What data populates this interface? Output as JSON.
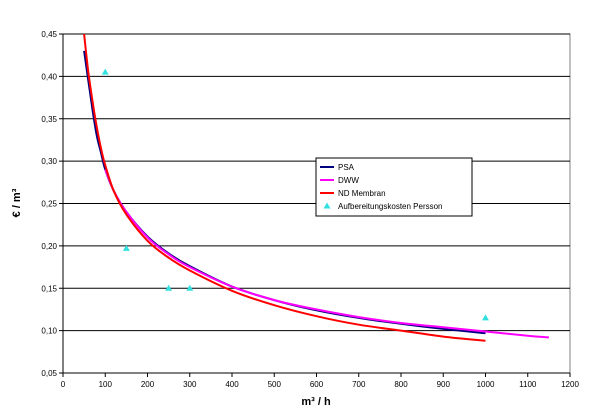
{
  "chart_data": {
    "type": "line",
    "title": "",
    "xlabel": "m³ / h",
    "ylabel": "€ / m³",
    "xlim": [
      0,
      1200
    ],
    "ylim": [
      0.05,
      0.45
    ],
    "xticks": [
      0,
      100,
      200,
      300,
      400,
      500,
      600,
      700,
      800,
      900,
      1000,
      1100,
      1200
    ],
    "xtick_labels": [
      "0",
      "100",
      "200",
      "300",
      "400",
      "500",
      "600",
      "700",
      "800",
      "900",
      "1000",
      "1100",
      "1200"
    ],
    "yticks": [
      0.05,
      0.1,
      0.15,
      0.2,
      0.25,
      0.3,
      0.35,
      0.4,
      0.45
    ],
    "ytick_labels": [
      "0,05",
      "0,10",
      "0,15",
      "0,20",
      "0,25",
      "0,30",
      "0,35",
      "0,40",
      "0,45"
    ],
    "grid": "horizontal",
    "legend_position": "right",
    "series": [
      {
        "name": "PSA",
        "kind": "line",
        "color": "#000080",
        "x": [
          50,
          60,
          70,
          80,
          90,
          100,
          120,
          150,
          200,
          250,
          300,
          400,
          500,
          600,
          700,
          800,
          900,
          1000
        ],
        "y": [
          0.43,
          0.395,
          0.36,
          0.33,
          0.31,
          0.29,
          0.265,
          0.24,
          0.211,
          0.191,
          0.176,
          0.152,
          0.136,
          0.124,
          0.115,
          0.108,
          0.102,
          0.097
        ]
      },
      {
        "name": "DWW",
        "kind": "line",
        "color": "#ff00ff",
        "x": [
          100,
          120,
          150,
          200,
          250,
          300,
          400,
          500,
          600,
          700,
          800,
          900,
          1000,
          1100,
          1150
        ],
        "y": [
          0.29,
          0.265,
          0.24,
          0.21,
          0.19,
          0.175,
          0.152,
          0.136,
          0.125,
          0.116,
          0.109,
          0.104,
          0.099,
          0.094,
          0.092
        ]
      },
      {
        "name": "ND Membran",
        "kind": "line",
        "color": "#ff0000",
        "x": [
          50,
          60,
          70,
          80,
          90,
          100,
          120,
          150,
          200,
          250,
          300,
          400,
          500,
          600,
          700,
          800,
          900,
          1000
        ],
        "y": [
          0.45,
          0.405,
          0.37,
          0.34,
          0.315,
          0.295,
          0.265,
          0.237,
          0.206,
          0.186,
          0.171,
          0.147,
          0.13,
          0.117,
          0.107,
          0.1,
          0.093,
          0.088
        ]
      },
      {
        "name": "Aufbereitungskosten Persson",
        "kind": "scatter",
        "color": "#33e0e0",
        "x": [
          100,
          150,
          250,
          300,
          1000
        ],
        "y": [
          0.405,
          0.197,
          0.15,
          0.15,
          0.115
        ]
      }
    ]
  }
}
